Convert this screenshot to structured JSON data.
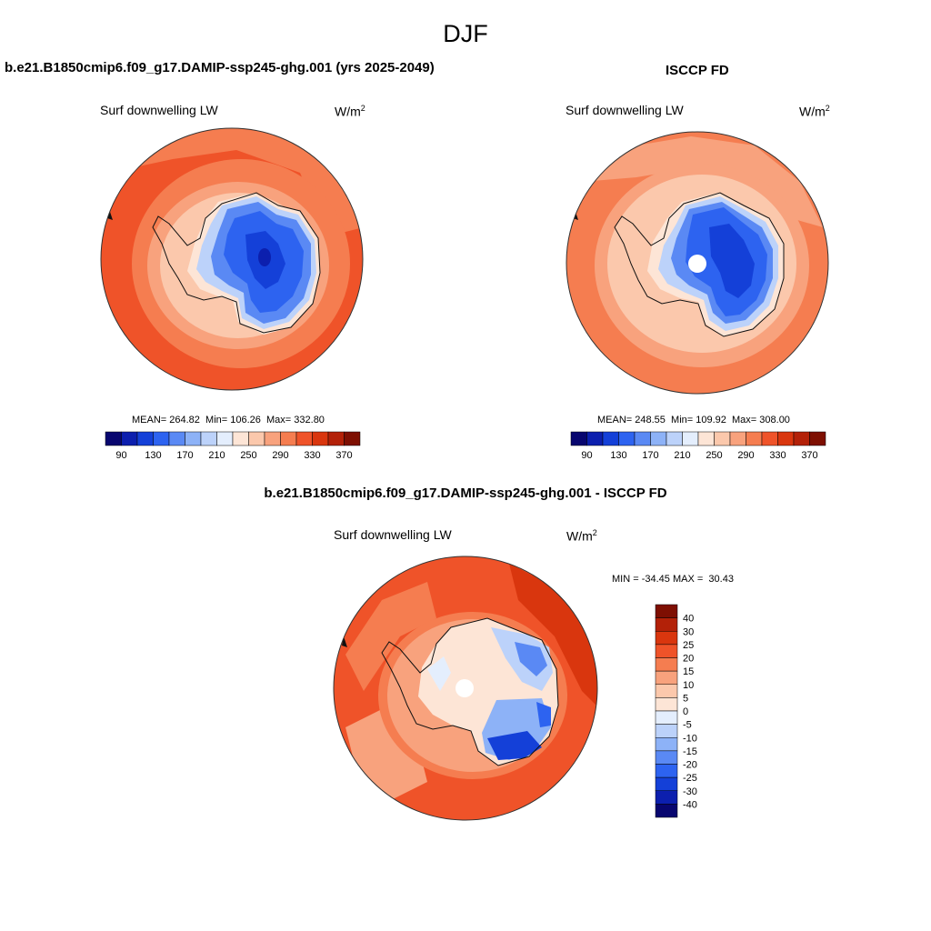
{
  "figure": {
    "season": "DJF",
    "panels": [
      {
        "title": "b.e21.B1850cmip6.f09_g17.DAMIP-ssp245-ghg.001 (yrs 2025-2049)",
        "variable": "Surf downwelling LW",
        "units": "W/m",
        "units_sup": "2",
        "stats": {
          "mean": "264.82",
          "min": "106.26",
          "max": "332.80"
        }
      },
      {
        "title": "ISCCP FD",
        "variable": "Surf downwelling LW",
        "units": "W/m",
        "units_sup": "2",
        "stats": {
          "mean": "248.55",
          "min": "109.92",
          "max": "308.00"
        }
      },
      {
        "title": "b.e21.B1850cmip6.f09_g17.DAMIP-ssp245-ghg.001 - ISCCP FD",
        "variable": "Surf downwelling LW",
        "units": "W/m",
        "units_sup": "2",
        "stats": {
          "min": "-34.45",
          "max": "30.43"
        }
      }
    ]
  },
  "chart_data": [
    {
      "type": "heatmap",
      "projection": "south-polar-stereographic",
      "title": "b.e21.B1850cmip6.f09_g17.DAMIP-ssp245-ghg.001 (yrs 2025-2049)",
      "field": "Surf downwelling LW",
      "units": "W/m2",
      "mean": 264.82,
      "min": 106.26,
      "max": 332.8,
      "colorbar_levels": [
        90,
        110,
        130,
        150,
        170,
        190,
        210,
        230,
        250,
        270,
        290,
        310,
        330,
        350,
        370
      ],
      "colorbar_tick_labels": [
        "90",
        "130",
        "170",
        "210",
        "250",
        "290",
        "330",
        "370"
      ]
    },
    {
      "type": "heatmap",
      "projection": "south-polar-stereographic",
      "title": "ISCCP FD",
      "field": "Surf downwelling LW",
      "units": "W/m2",
      "mean": 248.55,
      "min": 109.92,
      "max": 308.0,
      "colorbar_levels": [
        90,
        110,
        130,
        150,
        170,
        190,
        210,
        230,
        250,
        270,
        290,
        310,
        330,
        350,
        370
      ],
      "colorbar_tick_labels": [
        "90",
        "130",
        "170",
        "210",
        "250",
        "290",
        "330",
        "370"
      ]
    },
    {
      "type": "heatmap",
      "projection": "south-polar-stereographic",
      "title": "b.e21.B1850cmip6.f09_g17.DAMIP-ssp245-ghg.001 - ISCCP FD",
      "field": "Surf downwelling LW",
      "units": "W/m2",
      "min": -34.45,
      "max": 30.43,
      "colorbar_levels": [
        -40,
        -30,
        -25,
        -20,
        -15,
        -10,
        -5,
        0,
        5,
        10,
        15,
        20,
        25,
        30,
        40
      ],
      "colorbar_tick_labels": [
        "40",
        "30",
        "25",
        "20",
        "15",
        "10",
        "5",
        "0",
        "-5",
        "-10",
        "-15",
        "-20",
        "-25",
        "-30",
        "-40"
      ]
    }
  ],
  "colors": {
    "abs_scale": [
      "#08066f",
      "#0c1fae",
      "#1440d8",
      "#2d63f0",
      "#5a89f4",
      "#8db2f7",
      "#bcd2fa",
      "#e4eefd",
      "#fde5d6",
      "#fbc8ac",
      "#f8a27d",
      "#f57d50",
      "#ef5329",
      "#d9360e",
      "#b32108",
      "#7e0f02"
    ],
    "diff_scale": [
      "#7e0f02",
      "#b32108",
      "#d9360e",
      "#ef5329",
      "#f57d50",
      "#f8a27d",
      "#fbc8ac",
      "#fde5d6",
      "#e4eefd",
      "#bcd2fa",
      "#8db2f7",
      "#5a89f4",
      "#2d63f0",
      "#1440d8",
      "#0c1fae",
      "#08066f"
    ]
  }
}
